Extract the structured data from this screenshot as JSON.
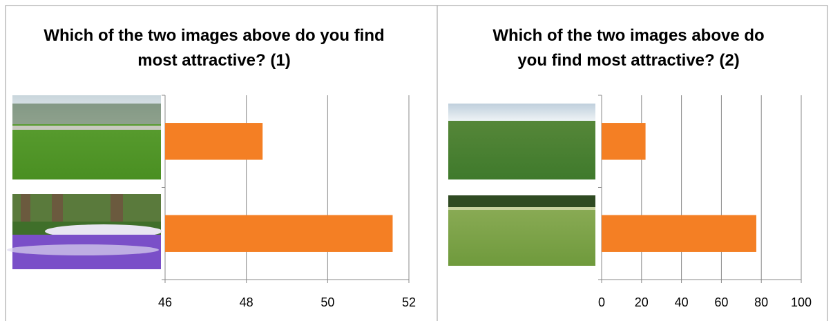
{
  "chart_data": [
    {
      "type": "bar",
      "title": "Which of the two images above do you find most attractive? (1)",
      "categories": [
        null,
        null
      ],
      "values": [
        48.4,
        51.6
      ],
      "color": "#f47f24",
      "xlim": [
        46,
        52
      ],
      "xticks": [
        46,
        48,
        50,
        52
      ],
      "grid": true
    },
    {
      "type": "bar",
      "title": "Which of the two images above do you find most attractive? (2)",
      "categories": [
        null,
        null
      ],
      "values": [
        22,
        77.5
      ],
      "color": "#f47f24",
      "xlim": [
        0,
        100
      ],
      "xticks": [
        0,
        20,
        40,
        60,
        80,
        100
      ],
      "grid": true
    }
  ]
}
